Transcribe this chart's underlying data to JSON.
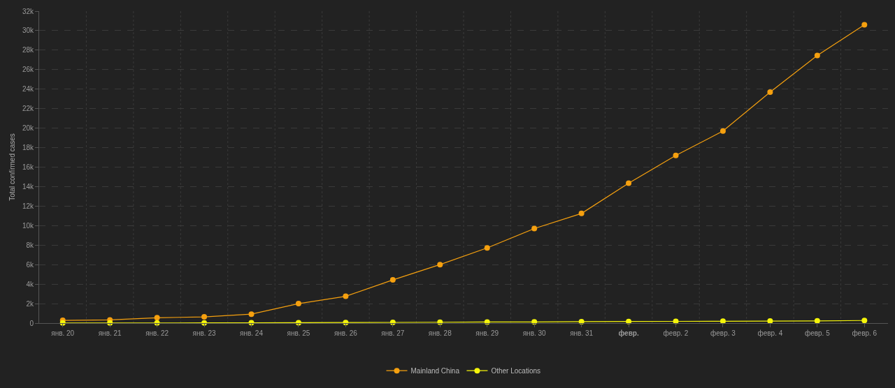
{
  "chart_data": {
    "type": "line",
    "ylabel": "Total confirmed cases",
    "categories": [
      "янв. 20",
      "янв. 21",
      "янв. 22",
      "янв. 23",
      "янв. 24",
      "янв. 25",
      "янв. 26",
      "янв. 27",
      "янв. 28",
      "янв. 29",
      "янв. 30",
      "янв. 31",
      "февр.",
      "февр. 2",
      "февр. 3",
      "февр. 4",
      "февр. 5",
      "февр. 6"
    ],
    "series": [
      {
        "name": "Mainland China",
        "color": "#f5a00f",
        "values": [
          280,
          330,
          550,
          640,
          920,
          2000,
          2750,
          4430,
          6000,
          7710,
          9700,
          11250,
          14350,
          17200,
          19700,
          23700,
          27450,
          30600
        ]
      },
      {
        "name": "Other Locations",
        "color": "#f5f50a",
        "values": [
          10,
          10,
          10,
          20,
          30,
          40,
          60,
          70,
          90,
          110,
          120,
          150,
          170,
          180,
          190,
          210,
          230,
          270
        ]
      }
    ],
    "ylim": [
      0,
      32000
    ],
    "yticks": [
      {
        "value": 0,
        "label": "0"
      },
      {
        "value": 2000,
        "label": "2k"
      },
      {
        "value": 4000,
        "label": "4k"
      },
      {
        "value": 6000,
        "label": "6k"
      },
      {
        "value": 8000,
        "label": "8k"
      },
      {
        "value": 10000,
        "label": "10k"
      },
      {
        "value": 12000,
        "label": "12k"
      },
      {
        "value": 14000,
        "label": "14k"
      },
      {
        "value": 16000,
        "label": "16k"
      },
      {
        "value": 18000,
        "label": "18k"
      },
      {
        "value": 20000,
        "label": "20k"
      },
      {
        "value": 22000,
        "label": "22k"
      },
      {
        "value": 24000,
        "label": "24k"
      },
      {
        "value": 26000,
        "label": "26k"
      },
      {
        "value": 28000,
        "label": "28k"
      },
      {
        "value": 30000,
        "label": "30k"
      },
      {
        "value": 32000,
        "label": "32k"
      }
    ],
    "grid": true,
    "legend": "bottom",
    "marker": "circle",
    "line_style": "solid"
  }
}
